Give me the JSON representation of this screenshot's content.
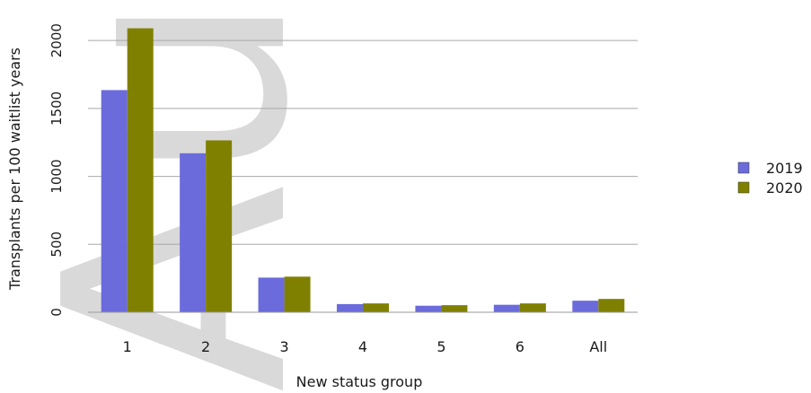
{
  "chart_data": {
    "type": "bar",
    "categories": [
      "1",
      "2",
      "3",
      "4",
      "5",
      "6",
      "All"
    ],
    "series": [
      {
        "name": "2019",
        "color": "#6b6bdc",
        "values": [
          1635,
          1170,
          255,
          60,
          48,
          55,
          85
        ]
      },
      {
        "name": "2020",
        "color": "#808000",
        "values": [
          2090,
          1265,
          262,
          65,
          52,
          65,
          98
        ]
      }
    ],
    "title": "",
    "xlabel": "New status group",
    "ylabel": "Transplants per 100 waitlist years",
    "ylim": [
      0,
      2100
    ],
    "yticks": [
      "0",
      "500",
      "1000",
      "1500",
      "2000"
    ],
    "grid": true,
    "legend_position": "right"
  },
  "watermark": "Author"
}
